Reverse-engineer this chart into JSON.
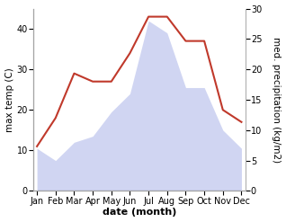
{
  "months": [
    "Jan",
    "Feb",
    "Mar",
    "Apr",
    "May",
    "Jun",
    "Jul",
    "Aug",
    "Sep",
    "Oct",
    "Nov",
    "Dec"
  ],
  "month_indices": [
    0,
    1,
    2,
    3,
    4,
    5,
    6,
    7,
    8,
    9,
    10,
    11
  ],
  "temperature": [
    11,
    18,
    29,
    27,
    27,
    34,
    43,
    43,
    37,
    37,
    20,
    17
  ],
  "precipitation": [
    7,
    5,
    8,
    9,
    13,
    16,
    28,
    26,
    17,
    17,
    10,
    7
  ],
  "temp_ylim": [
    0,
    45
  ],
  "precip_ylim": [
    0,
    30
  ],
  "temp_yticks": [
    0,
    10,
    20,
    30,
    40
  ],
  "precip_yticks": [
    0,
    5,
    10,
    15,
    20,
    25,
    30
  ],
  "temp_color": "#c0392b",
  "precip_fill_color": "#aab4e8",
  "precip_fill_alpha": 0.55,
  "xlabel": "date (month)",
  "ylabel_left": "max temp (C)",
  "ylabel_right": "med. precipitation (kg/m2)",
  "xlabel_fontsize": 8,
  "ylabel_fontsize": 7.5,
  "tick_fontsize": 7,
  "background_color": "#ffffff"
}
